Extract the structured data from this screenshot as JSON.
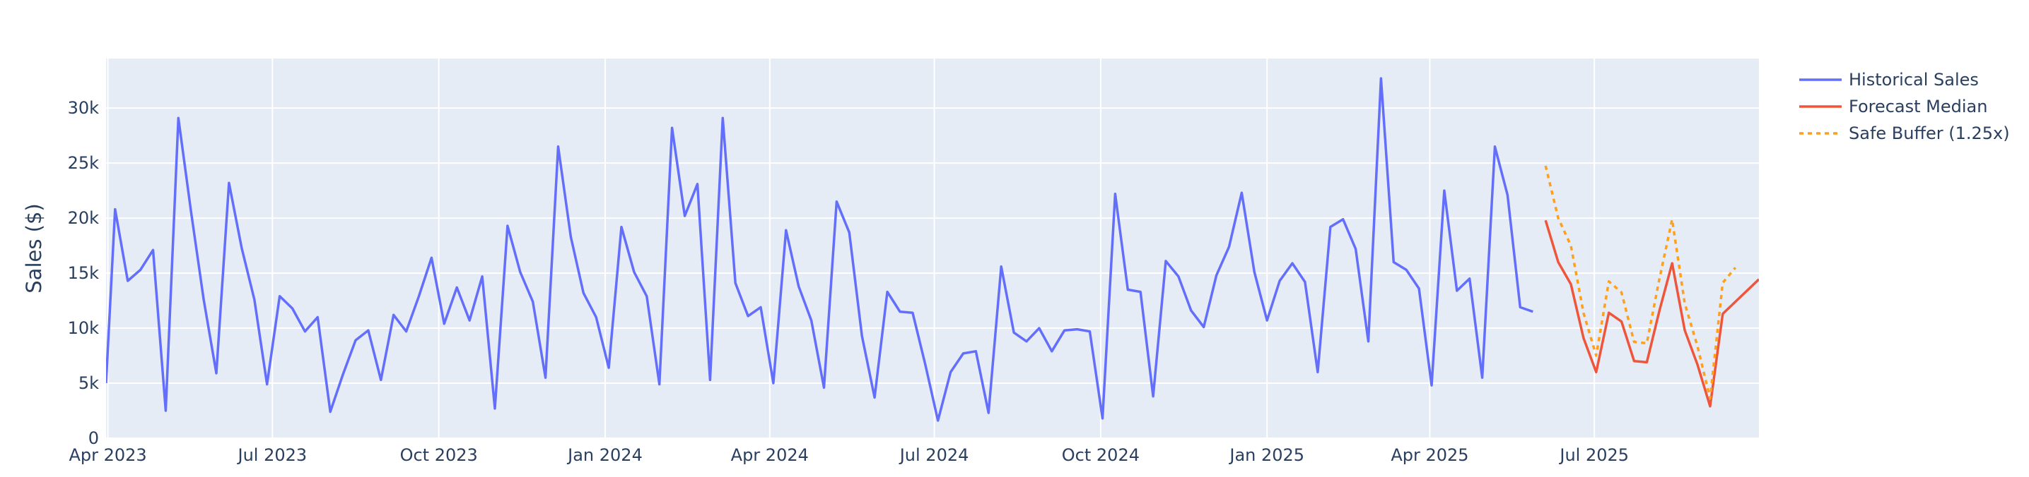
{
  "chart_data": {
    "type": "line",
    "title": "",
    "xlabel": "",
    "ylabel": "Sales ($)",
    "x_range": [
      "2023-03-31",
      "2025-09-30"
    ],
    "ylim": [
      0,
      34500
    ],
    "grid": true,
    "legend_position": "top-right",
    "plot_background": "#e5ecf6",
    "x_ticks": [
      {
        "date": "2023-04-01",
        "label": "Apr 2023"
      },
      {
        "date": "2023-07-01",
        "label": "Jul 2023"
      },
      {
        "date": "2023-10-01",
        "label": "Oct 2023"
      },
      {
        "date": "2024-01-01",
        "label": "Jan 2024"
      },
      {
        "date": "2024-04-01",
        "label": "Apr 2024"
      },
      {
        "date": "2024-07-01",
        "label": "Jul 2024"
      },
      {
        "date": "2024-10-01",
        "label": "Oct 2024"
      },
      {
        "date": "2025-01-01",
        "label": "Jan 2025"
      },
      {
        "date": "2025-04-01",
        "label": "Apr 2025"
      },
      {
        "date": "2025-07-01",
        "label": "Jul 2025"
      }
    ],
    "y_ticks": [
      {
        "value": 0,
        "label": "0"
      },
      {
        "value": 5000,
        "label": "5k"
      },
      {
        "value": 10000,
        "label": "10k"
      },
      {
        "value": 15000,
        "label": "15k"
      },
      {
        "value": 20000,
        "label": "20k"
      },
      {
        "value": 25000,
        "label": "25k"
      },
      {
        "value": 30000,
        "label": "30k"
      }
    ],
    "series": [
      {
        "name": "Historical Sales",
        "color": "#636efa",
        "dash": "solid",
        "x": [
          "2023-03-31",
          "2023-04-05",
          "2023-04-12",
          "2023-04-19",
          "2023-04-26",
          "2023-05-03",
          "2023-05-10",
          "2023-05-17",
          "2023-05-24",
          "2023-05-31",
          "2023-06-07",
          "2023-06-14",
          "2023-06-21",
          "2023-06-28",
          "2023-07-05",
          "2023-07-12",
          "2023-07-19",
          "2023-07-26",
          "2023-08-02",
          "2023-08-09",
          "2023-08-16",
          "2023-08-23",
          "2023-08-30",
          "2023-09-06",
          "2023-09-13",
          "2023-09-20",
          "2023-09-27",
          "2023-10-04",
          "2023-10-11",
          "2023-10-18",
          "2023-10-25",
          "2023-11-01",
          "2023-11-08",
          "2023-11-15",
          "2023-11-22",
          "2023-11-29",
          "2023-12-06",
          "2023-12-13",
          "2023-12-20",
          "2023-12-27",
          "2024-01-03",
          "2024-01-10",
          "2024-01-17",
          "2024-01-24",
          "2024-01-31",
          "2024-02-07",
          "2024-02-14",
          "2024-02-21",
          "2024-02-28",
          "2024-03-06",
          "2024-03-13",
          "2024-03-20",
          "2024-03-27",
          "2024-04-03",
          "2024-04-10",
          "2024-04-17",
          "2024-04-24",
          "2024-05-01",
          "2024-05-08",
          "2024-05-15",
          "2024-05-22",
          "2024-05-29",
          "2024-06-05",
          "2024-06-12",
          "2024-06-19",
          "2024-06-26",
          "2024-07-03",
          "2024-07-10",
          "2024-07-17",
          "2024-07-24",
          "2024-07-31",
          "2024-08-07",
          "2024-08-14",
          "2024-08-21",
          "2024-08-28",
          "2024-09-04",
          "2024-09-11",
          "2024-09-18",
          "2024-09-25",
          "2024-10-02",
          "2024-10-09",
          "2024-10-16",
          "2024-10-23",
          "2024-10-30",
          "2024-11-06",
          "2024-11-13",
          "2024-11-20",
          "2024-11-27",
          "2024-12-04",
          "2024-12-11",
          "2024-12-18",
          "2024-12-25",
          "2025-01-01",
          "2025-01-08",
          "2025-01-15",
          "2025-01-22",
          "2025-01-29",
          "2025-02-05",
          "2025-02-12",
          "2025-02-19",
          "2025-02-26",
          "2025-03-05",
          "2025-03-12",
          "2025-03-19",
          "2025-03-26",
          "2025-04-02",
          "2025-04-09",
          "2025-04-16",
          "2025-04-23",
          "2025-04-30",
          "2025-05-07",
          "2025-05-14",
          "2025-05-21",
          "2025-05-28"
        ],
        "values": [
          5000,
          20800,
          14300,
          15300,
          17100,
          2500,
          29100,
          20600,
          12600,
          5900,
          23200,
          17300,
          12600,
          4900,
          12900,
          11800,
          9700,
          11000,
          2400,
          5800,
          8900,
          9800,
          5300,
          11200,
          9700,
          12900,
          16400,
          10400,
          13700,
          10700,
          14700,
          2700,
          19300,
          15100,
          12400,
          5500,
          26500,
          18300,
          13200,
          11000,
          6400,
          19200,
          15100,
          12900,
          4900,
          28200,
          20200,
          23100,
          5300,
          29100,
          14100,
          11100,
          11900,
          5000,
          18900,
          13800,
          10700,
          4600,
          21500,
          18700,
          9300,
          3700,
          13300,
          11500,
          11400,
          6700,
          1600,
          6000,
          7700,
          7900,
          2300,
          15600,
          9600,
          8800,
          10000,
          7900,
          9800,
          9900,
          9700,
          1800,
          22200,
          13500,
          13300,
          3800,
          16100,
          14700,
          11600,
          10100,
          14800,
          17400,
          22300,
          15100,
          10700,
          14300,
          15900,
          14200,
          6000,
          19200,
          19900,
          17200,
          8800,
          32700,
          16000,
          15300,
          13600,
          4800,
          22500,
          13400,
          14500,
          5500,
          26500,
          22100,
          11900,
          11500
        ]
      },
      {
        "name": "Forecast Median",
        "color": "#ef553b",
        "dash": "solid",
        "x": [
          "2025-06-04",
          "2025-06-11",
          "2025-06-18",
          "2025-06-25",
          "2025-07-02",
          "2025-07-09",
          "2025-07-16",
          "2025-07-23",
          "2025-07-30",
          "2025-08-06",
          "2025-08-13",
          "2025-08-20",
          "2025-08-27",
          "2025-09-03",
          "2025-09-10",
          "2025-09-17",
          "2025-09-24"
        ],
        "values": [
          19800,
          16000,
          14000,
          9100,
          6000,
          11400,
          10600,
          7000,
          6900,
          11600,
          15900,
          9800,
          6700,
          2900,
          11300,
          12400,
          null
        ]
      },
      {
        "name": "Safe Buffer (1.25x)",
        "color": "#ff9f1c",
        "dash": "dot",
        "x": [
          "2025-06-04",
          "2025-06-11",
          "2025-06-18",
          "2025-06-25",
          "2025-07-02",
          "2025-07-09",
          "2025-07-16",
          "2025-07-23",
          "2025-07-30",
          "2025-08-06",
          "2025-08-13",
          "2025-08-20",
          "2025-08-27",
          "2025-09-03",
          "2025-09-10",
          "2025-09-17"
        ],
        "values": [
          24750,
          20000,
          17500,
          11375,
          7500,
          14250,
          13250,
          8750,
          8625,
          14500,
          19875,
          12250,
          8375,
          3625,
          14125,
          15500
        ]
      }
    ]
  }
}
